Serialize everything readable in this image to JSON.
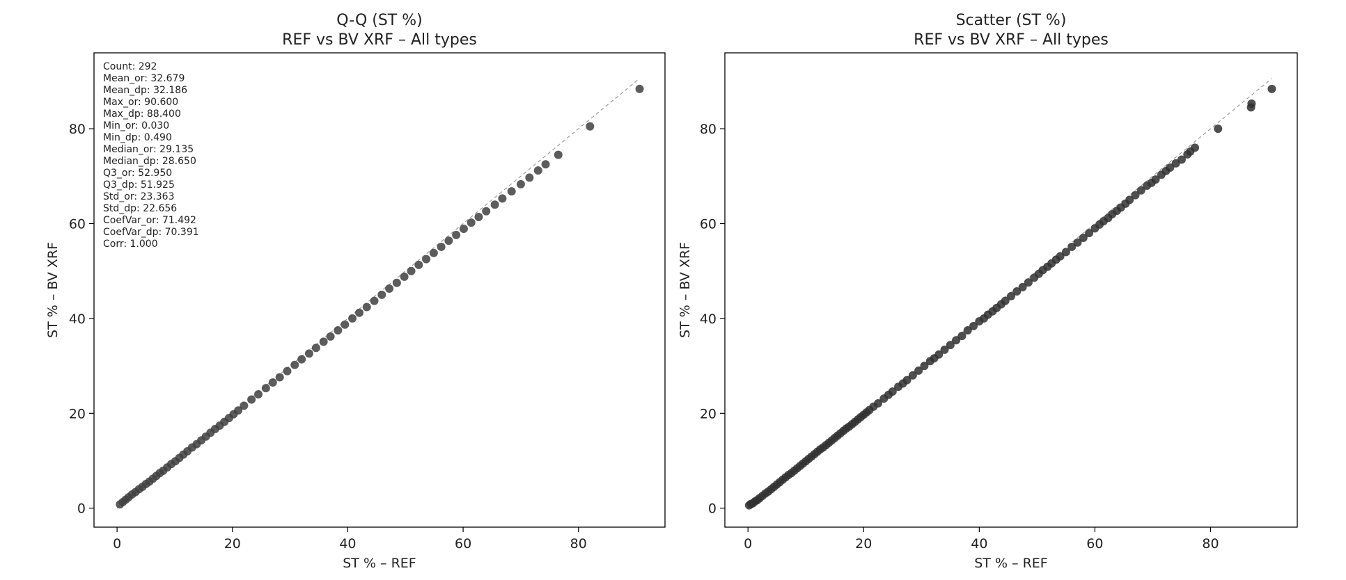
{
  "charts": [
    {
      "type": "scatter",
      "title": "Q-Q (ST %)",
      "subtitle": "REF vs BV XRF – All types",
      "xlabel": "ST % – REF",
      "ylabel": "ST % – BV XRF",
      "xlim": [
        -4,
        95
      ],
      "ylim": [
        -4,
        96
      ],
      "xticks": [
        0,
        20,
        40,
        60,
        80
      ],
      "yticks": [
        0,
        20,
        40,
        60,
        80
      ],
      "grid": false,
      "reference_line": "y = x (dashed)",
      "point_color": "#404040",
      "stats": [
        "Count: 292",
        "Mean_or: 32.679",
        "Mean_dp: 32.186",
        "Max_or: 90.600",
        "Max_dp: 88.400",
        "Min_or: 0.030",
        "Min_dp: 0.490",
        "Median_or: 29.135",
        "Median_dp: 28.650",
        "Q3_or: 52.950",
        "Q3_dp: 51.925",
        "Std_or: 23.363",
        "Std_dp: 22.656",
        "CoefVar_or: 71.492",
        "CoefVar_dp: 70.391",
        "Corr: 1.000"
      ],
      "points": [
        [
          0.5,
          0.8
        ],
        [
          1,
          1.3
        ],
        [
          1.5,
          1.8
        ],
        [
          2,
          2.3
        ],
        [
          2.6,
          2.9
        ],
        [
          3.2,
          3.4
        ],
        [
          3.8,
          4
        ],
        [
          4.4,
          4.5
        ],
        [
          5,
          5.1
        ],
        [
          5.6,
          5.6
        ],
        [
          6.2,
          6.2
        ],
        [
          6.8,
          6.8
        ],
        [
          7.4,
          7.4
        ],
        [
          8,
          7.9
        ],
        [
          8.7,
          8.6
        ],
        [
          9.4,
          9.3
        ],
        [
          10.1,
          9.9
        ],
        [
          10.8,
          10.6
        ],
        [
          11.5,
          11.3
        ],
        [
          12.2,
          12
        ],
        [
          13,
          12.8
        ],
        [
          13.8,
          13.5
        ],
        [
          14.6,
          14.3
        ],
        [
          15.4,
          15.1
        ],
        [
          16.2,
          15.9
        ],
        [
          17,
          16.7
        ],
        [
          17.8,
          17.4
        ],
        [
          18.6,
          18.2
        ],
        [
          19.4,
          19
        ],
        [
          20.2,
          19.8
        ],
        [
          21,
          20.6
        ],
        [
          22,
          21.6
        ],
        [
          23.3,
          22.9
        ],
        [
          24.5,
          24
        ],
        [
          25.8,
          25.3
        ],
        [
          27,
          26.5
        ],
        [
          28.2,
          27.6
        ],
        [
          29.5,
          28.9
        ],
        [
          30.8,
          30.2
        ],
        [
          32,
          31.4
        ],
        [
          33.3,
          32.6
        ],
        [
          34.5,
          33.8
        ],
        [
          35.8,
          35.1
        ],
        [
          37,
          36.2
        ],
        [
          38.3,
          37.5
        ],
        [
          39.5,
          38.7
        ],
        [
          40.8,
          40
        ],
        [
          42,
          41.2
        ],
        [
          43.3,
          42.4
        ],
        [
          44.6,
          43.7
        ],
        [
          45.9,
          45
        ],
        [
          47.2,
          46.3
        ],
        [
          48.5,
          47.5
        ],
        [
          49.8,
          48.8
        ],
        [
          51,
          50
        ],
        [
          52.3,
          51.3
        ],
        [
          53.6,
          52.5
        ],
        [
          54.9,
          53.8
        ],
        [
          56.2,
          55.1
        ],
        [
          57.5,
          56.4
        ],
        [
          58.8,
          57.6
        ],
        [
          60.1,
          58.9
        ],
        [
          61.4,
          60.2
        ],
        [
          62.7,
          61.4
        ],
        [
          64,
          62.6
        ],
        [
          65.5,
          64
        ],
        [
          66.8,
          65.3
        ],
        [
          68.4,
          66.8
        ],
        [
          70,
          68.3
        ],
        [
          71.5,
          69.7
        ],
        [
          73,
          71.2
        ],
        [
          74.3,
          72.5
        ],
        [
          76.5,
          74.5
        ],
        [
          82,
          80.5
        ],
        [
          90.6,
          88.4
        ]
      ]
    },
    {
      "type": "scatter",
      "title": "Scatter (ST %)",
      "subtitle": "REF vs BV XRF – All types",
      "xlabel": "ST % – REF",
      "ylabel": "ST % – BV XRF",
      "xlim": [
        -4,
        95
      ],
      "ylim": [
        -4,
        96
      ],
      "xticks": [
        0,
        20,
        40,
        60,
        80
      ],
      "yticks": [
        0,
        20,
        40,
        60,
        80
      ],
      "grid": false,
      "reference_line": "y = x (dashed)",
      "point_color": "#303030",
      "points": [
        [
          0.2,
          0.6
        ],
        [
          0.5,
          0.9
        ],
        [
          0.8,
          1
        ],
        [
          1.2,
          1.4
        ],
        [
          1.6,
          1.7
        ],
        [
          2,
          2.1
        ],
        [
          2.5,
          2.6
        ],
        [
          3,
          3.1
        ],
        [
          3.5,
          3.5
        ],
        [
          4,
          4
        ],
        [
          4.5,
          4.5
        ],
        [
          5,
          5
        ],
        [
          5.5,
          5.5
        ],
        [
          6,
          6
        ],
        [
          6.5,
          6.5
        ],
        [
          7,
          7
        ],
        [
          7.5,
          7.4
        ],
        [
          8,
          7.9
        ],
        [
          8.5,
          8.4
        ],
        [
          9,
          8.9
        ],
        [
          9.5,
          9.4
        ],
        [
          10,
          9.9
        ],
        [
          10.5,
          10.4
        ],
        [
          11,
          10.9
        ],
        [
          11.5,
          11.4
        ],
        [
          12,
          11.9
        ],
        [
          12.5,
          12.4
        ],
        [
          13,
          12.8
        ],
        [
          13.5,
          13.3
        ],
        [
          14,
          13.8
        ],
        [
          14.5,
          14.3
        ],
        [
          15,
          14.8
        ],
        [
          15.5,
          15.3
        ],
        [
          16,
          15.8
        ],
        [
          16.5,
          16.3
        ],
        [
          17,
          16.8
        ],
        [
          17.5,
          17.2
        ],
        [
          18,
          17.7
        ],
        [
          18.5,
          18.2
        ],
        [
          19,
          18.7
        ],
        [
          19.5,
          19.2
        ],
        [
          20,
          19.7
        ],
        [
          20.5,
          20.2
        ],
        [
          21,
          20.7
        ],
        [
          21.7,
          21.4
        ],
        [
          22.5,
          22.1
        ],
        [
          23.5,
          23.1
        ],
        [
          24.3,
          23.9
        ],
        [
          25,
          24.6
        ],
        [
          26,
          25.6
        ],
        [
          26.8,
          26.3
        ],
        [
          27.5,
          27
        ],
        [
          28.5,
          28
        ],
        [
          29.5,
          29
        ],
        [
          30.5,
          30
        ],
        [
          31.5,
          31
        ],
        [
          32.2,
          31.6
        ],
        [
          33,
          32.4
        ],
        [
          34,
          33.4
        ],
        [
          35,
          34.4
        ],
        [
          36,
          35.4
        ],
        [
          37,
          36.3
        ],
        [
          38,
          37.5
        ],
        [
          39,
          38.4
        ],
        [
          40,
          39.4
        ],
        [
          40.8,
          40
        ],
        [
          41.5,
          40.8
        ],
        [
          42.3,
          41.5
        ],
        [
          43,
          42.2
        ],
        [
          43.8,
          43
        ],
        [
          44.5,
          43.7
        ],
        [
          45.5,
          44.7
        ],
        [
          46.5,
          45.7
        ],
        [
          47.5,
          46.6
        ],
        [
          48.5,
          47.6
        ],
        [
          49.5,
          48.6
        ],
        [
          50.3,
          49.4
        ],
        [
          51,
          50.2
        ],
        [
          51.8,
          50.9
        ],
        [
          52.5,
          51.6
        ],
        [
          53.3,
          52.4
        ],
        [
          54,
          53.1
        ],
        [
          55,
          54
        ],
        [
          56,
          55.1
        ],
        [
          57,
          56
        ],
        [
          58,
          57
        ],
        [
          59,
          58
        ],
        [
          60,
          59
        ],
        [
          60.8,
          59.8
        ],
        [
          61.5,
          60.5
        ],
        [
          62.3,
          61.2
        ],
        [
          63,
          62
        ],
        [
          63.8,
          62.7
        ],
        [
          64.5,
          63.4
        ],
        [
          65.3,
          64.2
        ],
        [
          66,
          65
        ],
        [
          67,
          66
        ],
        [
          68,
          67
        ],
        [
          69,
          68
        ],
        [
          69.8,
          68.6
        ],
        [
          70.5,
          69.3
        ],
        [
          71.5,
          70.3
        ],
        [
          72.3,
          71.1
        ],
        [
          73,
          71.8
        ],
        [
          74,
          72.7
        ],
        [
          75,
          73.5
        ],
        [
          76,
          74.6
        ],
        [
          76.5,
          75.2
        ],
        [
          77.3,
          76
        ],
        [
          81.3,
          80
        ],
        [
          87,
          84.5
        ],
        [
          87.1,
          85.3
        ],
        [
          90.6,
          88.4
        ]
      ]
    }
  ]
}
